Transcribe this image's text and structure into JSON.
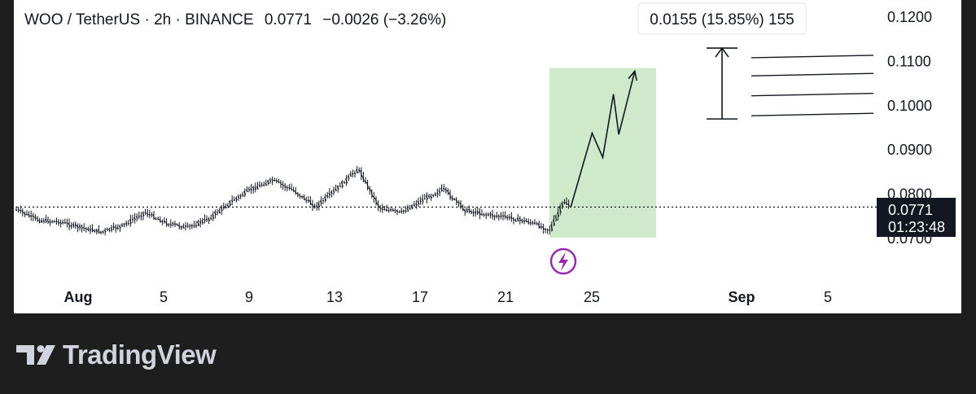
{
  "header": {
    "pair": "WOO / TetherUS",
    "interval": "2h",
    "exchange": "BINANCE",
    "separator": "·",
    "last_price": "0.0771",
    "change": "−0.0026",
    "change_pct": "(−3.26%)"
  },
  "price_tag": {
    "price": "0.0771",
    "countdown": "01:23:48"
  },
  "measure_label": "0.0155 (15.85%) 155",
  "brand": "TradingView",
  "event_icon": "lightning-bolt-icon",
  "colors": {
    "chart_bg": "#ffffff",
    "page_bg": "#1e1e1e",
    "candles": "#131722",
    "projection_box": "#cfeacb",
    "event_badge": "#9c27b0",
    "price_tag_bg": "#131722"
  },
  "chart_data": {
    "type": "candlestick",
    "title": "WOO / TetherUS · 2h · BINANCE",
    "x_ticks": [
      "Aug",
      "5",
      "9",
      "13",
      "17",
      "21",
      "25",
      "Sep",
      "5"
    ],
    "y_ticks": [
      "0.1200",
      "0.1100",
      "0.1000",
      "0.0900",
      "0.0800",
      "0.0700"
    ],
    "ylim": [
      0.065,
      0.125
    ],
    "current_price": 0.0771,
    "price_close_path": [
      {
        "date": "2024-07-29",
        "price": 0.0765
      },
      {
        "date": "2024-07-30",
        "price": 0.0742
      },
      {
        "date": "2024-07-31",
        "price": 0.0738
      },
      {
        "date": "2024-08-01",
        "price": 0.0725
      },
      {
        "date": "2024-08-02",
        "price": 0.0715
      },
      {
        "date": "2024-08-03",
        "price": 0.073
      },
      {
        "date": "2024-08-04",
        "price": 0.076
      },
      {
        "date": "2024-08-05",
        "price": 0.0735
      },
      {
        "date": "2024-08-06",
        "price": 0.0725
      },
      {
        "date": "2024-08-07",
        "price": 0.0745
      },
      {
        "date": "2024-08-08",
        "price": 0.0782
      },
      {
        "date": "2024-08-09",
        "price": 0.0812
      },
      {
        "date": "2024-08-10",
        "price": 0.0832
      },
      {
        "date": "2024-08-11",
        "price": 0.0808
      },
      {
        "date": "2024-08-12",
        "price": 0.0772
      },
      {
        "date": "2024-08-13",
        "price": 0.0812
      },
      {
        "date": "2024-08-14",
        "price": 0.0858
      },
      {
        "date": "2024-08-15",
        "price": 0.077
      },
      {
        "date": "2024-08-16",
        "price": 0.0758
      },
      {
        "date": "2024-08-17",
        "price": 0.0788
      },
      {
        "date": "2024-08-18",
        "price": 0.0812
      },
      {
        "date": "2024-08-19",
        "price": 0.0765
      },
      {
        "date": "2024-08-20",
        "price": 0.0755
      },
      {
        "date": "2024-08-21",
        "price": 0.0748
      },
      {
        "date": "2024-08-22",
        "price": 0.0738
      },
      {
        "date": "2024-08-23",
        "price": 0.072
      },
      {
        "date": "2024-08-23T16:00",
        "price": 0.0785
      },
      {
        "date": "2024-08-24",
        "price": 0.0771
      }
    ],
    "projection_path": [
      {
        "date": "2024-08-24",
        "price": 0.0771
      },
      {
        "date": "2024-08-25",
        "price": 0.0938
      },
      {
        "date": "2024-08-25T12:00",
        "price": 0.0883
      },
      {
        "date": "2024-08-26",
        "price": 0.1026
      },
      {
        "date": "2024-08-26T06:00",
        "price": 0.0935
      },
      {
        "date": "2024-08-27",
        "price": 0.1078
      }
    ],
    "projection_box": {
      "date_start": "2024-08-23",
      "date_end": "2024-08-28",
      "price_low": 0.0702,
      "price_high": 0.1085
    },
    "measure": {
      "price_low": 0.097,
      "price_high": 0.113,
      "change": 0.0155,
      "change_pct": 15.85,
      "ticks": 155
    },
    "target_lines": [
      0.1111,
      0.107,
      0.1025,
      0.098
    ]
  }
}
